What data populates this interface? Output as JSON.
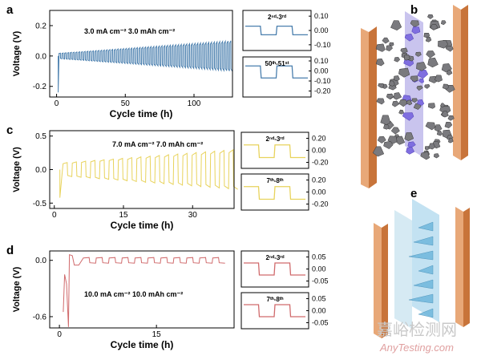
{
  "chart_data": [
    {
      "id": "a-main",
      "type": "line",
      "panel_letter": "a",
      "annotation": "3.0 mA cm⁻²  3.0 mAh cm⁻²",
      "xlabel": "Cycle time (h)",
      "ylabel": "Voltage (V)",
      "xlim": [
        -5,
        128
      ],
      "ylim": [
        -0.27,
        0.3
      ],
      "xticks": [
        0,
        50,
        100
      ],
      "yticks": [
        -0.2,
        0.0,
        0.2
      ],
      "ytick_labels": [
        "-0.2",
        "0.0",
        "0.2"
      ],
      "series": [
        {
          "color": "#4a7fae",
          "profile": {
            "start": 1.2,
            "end": 126,
            "period": 2,
            "amp_start": 0.018,
            "amp_end": 0.1,
            "initial_spike": -0.24
          }
        }
      ]
    },
    {
      "id": "a-inset-1",
      "type": "line",
      "label": "2ⁿᵈ-3ʳᵈ",
      "ylim": [
        -0.14,
        0.14
      ],
      "yticks": [
        0.1,
        0.0,
        -0.1
      ],
      "ytick_labels": [
        "0.10",
        "0.00",
        "-0.10"
      ],
      "series": [
        {
          "color": "#4a7fae",
          "levels": [
            0.03,
            -0.03
          ]
        }
      ]
    },
    {
      "id": "a-inset-2",
      "type": "line",
      "label": "50ᵗʰ-51ˢᵗ",
      "ylim": [
        -0.26,
        0.14
      ],
      "yticks": [
        0.1,
        0.0,
        -0.1,
        -0.2
      ],
      "ytick_labels": [
        "0.10",
        "0.00",
        "-0.10",
        "-0.20"
      ],
      "series": [
        {
          "color": "#4a7fae",
          "levels": [
            0.05,
            -0.07
          ]
        }
      ]
    },
    {
      "id": "c-main",
      "type": "line",
      "panel_letter": "c",
      "annotation": "7.0 mA cm⁻²  7.0 mAh cm⁻²",
      "xlabel": "Cycle time (h)",
      "ylabel": "Voltage (V)",
      "xlim": [
        -1,
        39
      ],
      "ylim": [
        -0.58,
        0.58
      ],
      "xticks": [
        0,
        15,
        30
      ],
      "yticks": [
        0.5,
        0.0,
        -0.5
      ],
      "ytick_labels": [
        "0.5",
        "0.0",
        "-0.5"
      ],
      "series": [
        {
          "color": "#e8d35c",
          "profile": {
            "start": 1.2,
            "end": 38.7,
            "period": 2,
            "amp_start": 0.1,
            "amp_end": 0.3,
            "initial_spike": -0.42
          }
        }
      ]
    },
    {
      "id": "c-inset-1",
      "type": "line",
      "label": "2ⁿᵈ-3ʳᵈ",
      "ylim": [
        -0.3,
        0.3
      ],
      "yticks": [
        0.2,
        0.0,
        -0.2
      ],
      "ytick_labels": [
        "0.20",
        "0.00",
        "-0.20"
      ],
      "series": [
        {
          "color": "#e8d35c",
          "levels": [
            0.09,
            -0.12
          ]
        }
      ]
    },
    {
      "id": "c-inset-2",
      "type": "line",
      "label": "7ᵗʰ-8ᵗʰ",
      "ylim": [
        -0.3,
        0.3
      ],
      "yticks": [
        0.2,
        0.0,
        -0.2
      ],
      "ytick_labels": [
        "0.20",
        "0.00",
        "-0.20"
      ],
      "series": [
        {
          "color": "#e8d35c",
          "levels": [
            0.09,
            -0.12
          ]
        }
      ]
    },
    {
      "id": "d-main",
      "type": "line",
      "panel_letter": "d",
      "annotation": "10.0 mA cm⁻²  10.0 mAh cm⁻²",
      "xlabel": "Cycle time (h)",
      "ylabel": "Voltage (V)",
      "xlim": [
        -1.5,
        27
      ],
      "ylim": [
        -0.72,
        0.1
      ],
      "xticks": [
        0,
        15
      ],
      "yticks": [
        0.0,
        -0.6
      ],
      "ytick_labels": [
        "0.0",
        "-0.6"
      ],
      "series": [
        {
          "color": "#d06a6c",
          "points": [
            [
              0.6,
              -0.55
            ],
            [
              0.8,
              -0.15
            ],
            [
              1.1,
              -0.25
            ],
            [
              1.4,
              -0.71
            ],
            [
              1.55,
              0.06
            ],
            [
              2.0,
              0.05
            ],
            [
              2.3,
              -0.05
            ],
            [
              3.0,
              -0.05
            ]
          ],
          "profile": {
            "start": 3.0,
            "end": 25.5,
            "period": 2,
            "amp_start": 0.03,
            "amp_end": 0.03,
            "offset": 0.0
          }
        }
      ]
    },
    {
      "id": "d-inset-1",
      "type": "line",
      "label": "2ⁿᵈ-3ʳᵈ",
      "ylim": [
        -0.075,
        0.075
      ],
      "yticks": [
        0.05,
        0.0,
        -0.05
      ],
      "ytick_labels": [
        "0.05",
        "0.00",
        "-0.05"
      ],
      "series": [
        {
          "color": "#d06a6c",
          "levels": [
            0.025,
            -0.025
          ]
        }
      ]
    },
    {
      "id": "d-inset-2",
      "type": "line",
      "label": "7ᵗʰ-8ᵗʰ",
      "ylim": [
        -0.075,
        0.075
      ],
      "yticks": [
        0.05,
        0.0,
        -0.05
      ],
      "ytick_labels": [
        "0.05",
        "0.00",
        "-0.05"
      ],
      "series": [
        {
          "color": "#d06a6c",
          "levels": [
            0.025,
            -0.025
          ]
        }
      ]
    }
  ],
  "schematics": {
    "b": {
      "panel_letter": "b",
      "electrode_color": "#c8743a",
      "separator_color": "#b7b0e8",
      "deposit_color": "#7a7a7e",
      "dendrite_color": "#7f6ee0"
    },
    "e": {
      "panel_letter": "e",
      "electrode_color": "#c8743a",
      "layer_color": "#a9d6ec",
      "dendrite_color": "#6fb7dc"
    }
  },
  "watermark": {
    "line1": "嘉峪检测网",
    "line2": "AnyTesting.com"
  }
}
